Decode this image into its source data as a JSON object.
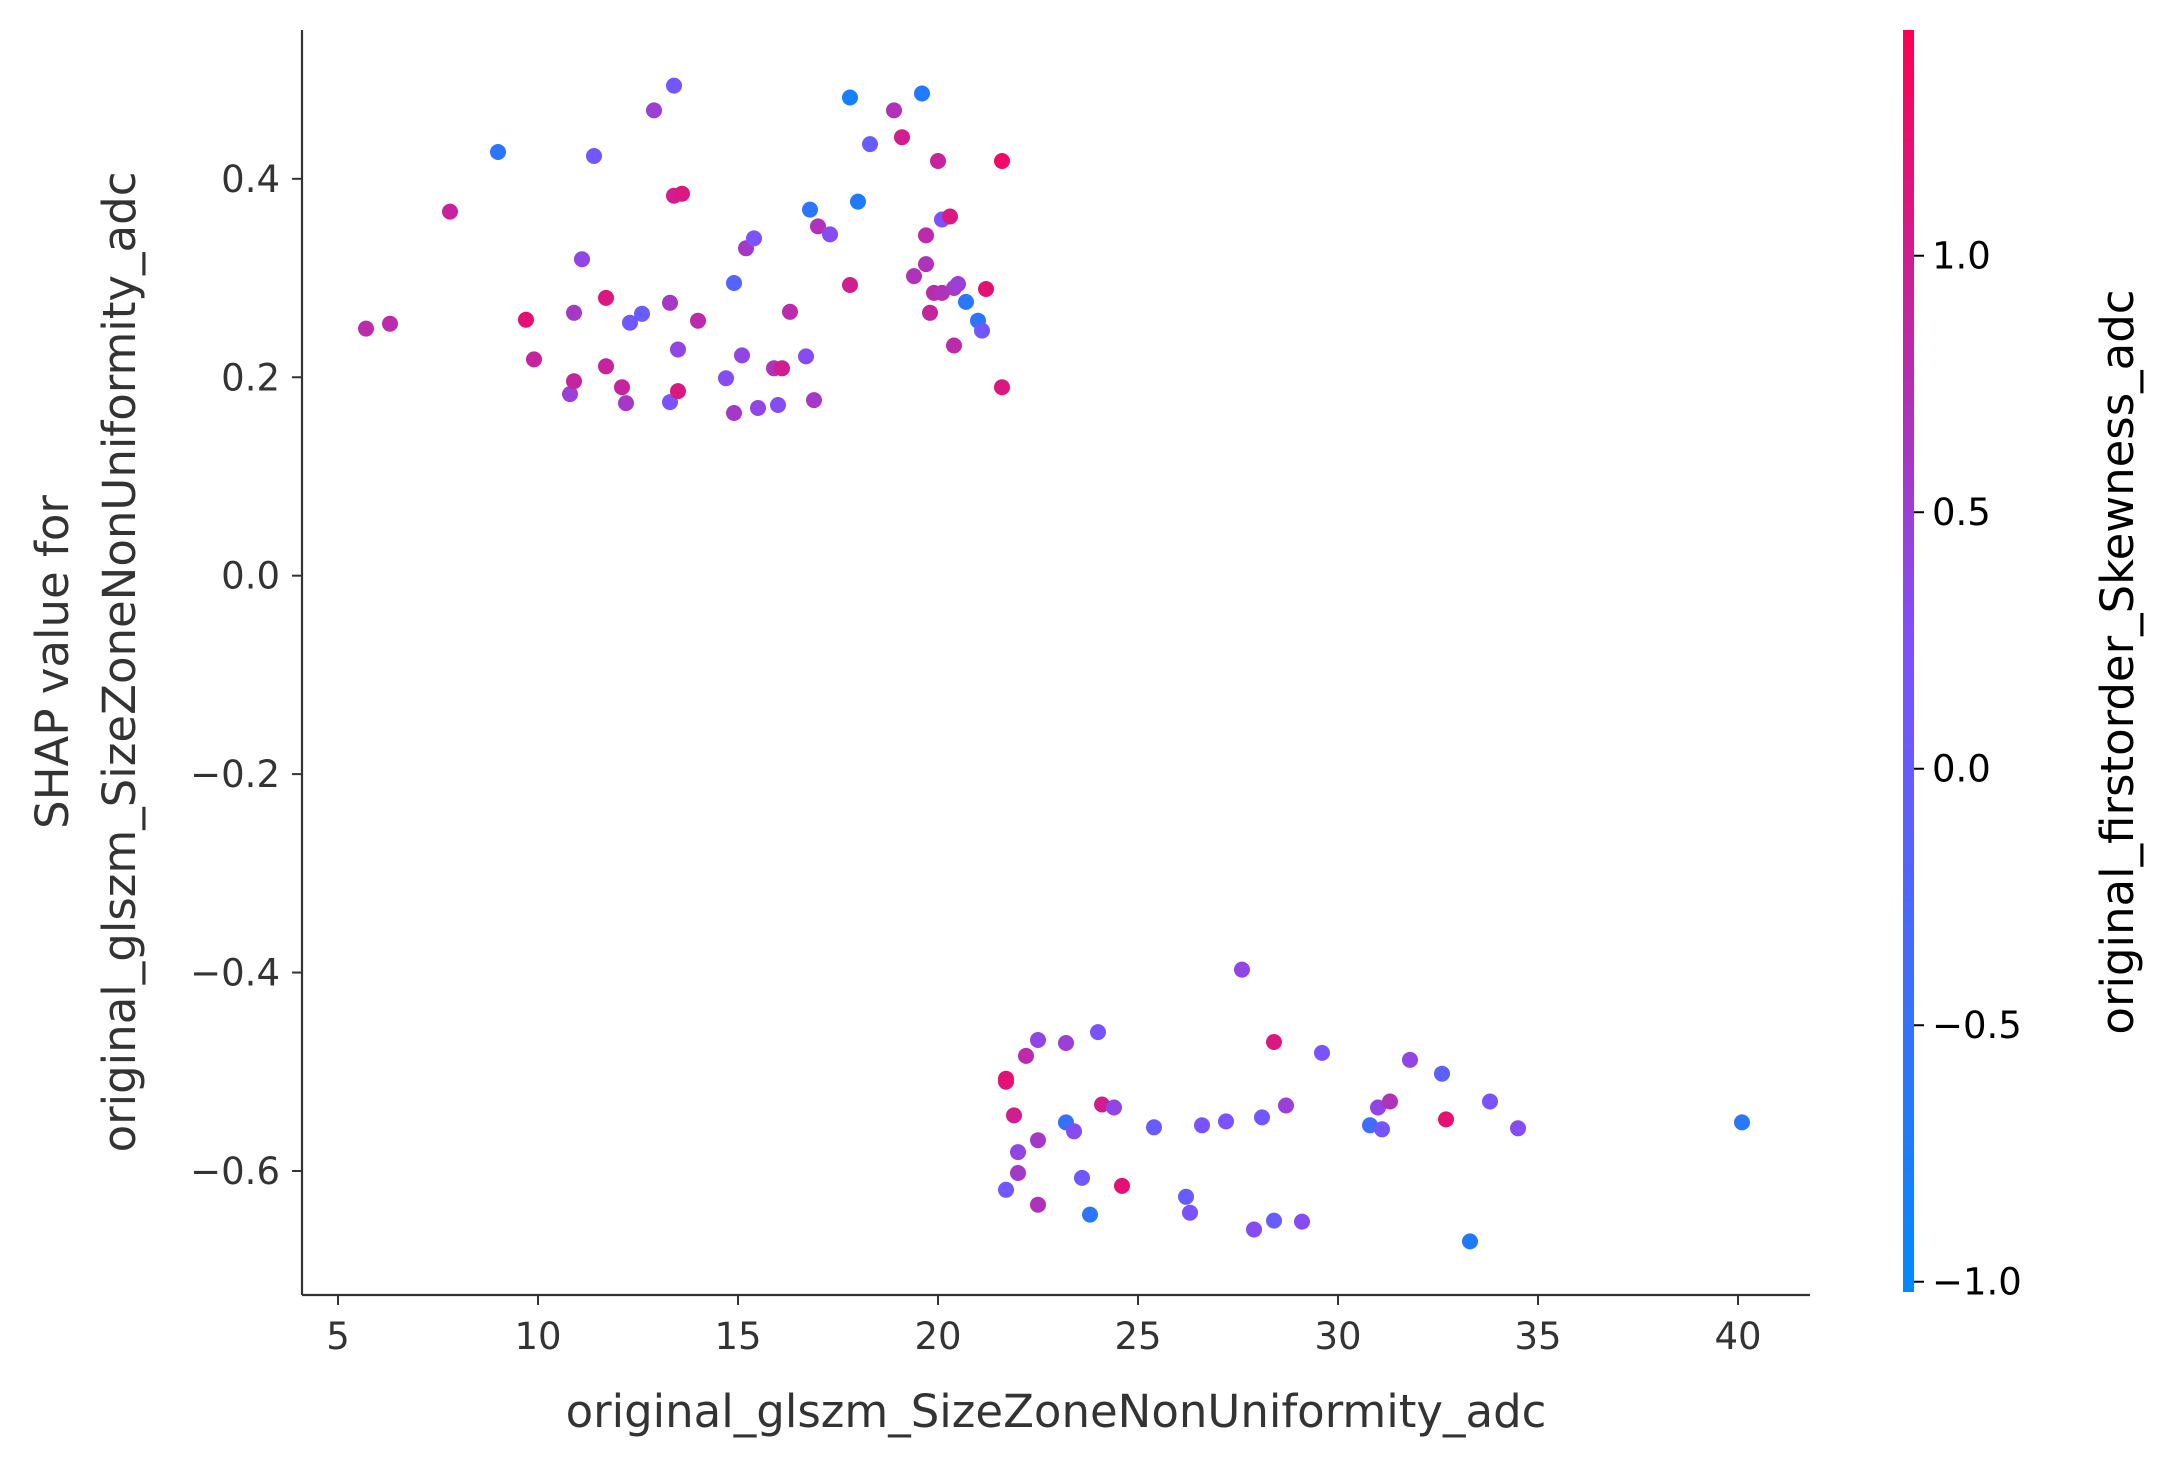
{
  "chart_data": {
    "type": "scatter",
    "title": "",
    "xlabel": "original_glszm_SizeZoneNonUniformity_adc",
    "ylabel_lines": [
      "SHAP value for",
      "original_glszm_SizeZoneNonUniformity_adc"
    ],
    "xlim": [
      4.1,
      41.8
    ],
    "ylim": [
      -0.725,
      0.55
    ],
    "x_ticks": [
      5,
      10,
      15,
      20,
      25,
      30,
      35,
      40
    ],
    "x_tick_labels": [
      "5",
      "10",
      "15",
      "20",
      "25",
      "30",
      "35",
      "40"
    ],
    "y_ticks": [
      -0.6,
      -0.4,
      -0.2,
      0.0,
      0.2,
      0.4
    ],
    "y_tick_labels": [
      "−0.6",
      "−0.4",
      "−0.2",
      "0.0",
      "0.2",
      "0.4"
    ],
    "grid": false,
    "colorbar": {
      "label": "original_firstorder_Skewness_adc",
      "range": [
        -1.02,
        1.44
      ],
      "ticks": [
        -1.0,
        -0.5,
        0.0,
        0.5,
        1.0
      ],
      "tick_labels": [
        "−1.0",
        "−0.5",
        "0.0",
        "0.5",
        "1.0"
      ],
      "low_color": "#008afb",
      "mid_color": "#7c52ff",
      "high_color": "#ff0052"
    },
    "points": [
      {
        "x": 5.7,
        "y": 0.249,
        "c": 0.8
      },
      {
        "x": 6.3,
        "y": 0.254,
        "c": 0.8
      },
      {
        "x": 7.8,
        "y": 0.367,
        "c": 0.9
      },
      {
        "x": 9.0,
        "y": 0.427,
        "c": -0.6
      },
      {
        "x": 9.7,
        "y": 0.258,
        "c": 1.2
      },
      {
        "x": 9.9,
        "y": 0.218,
        "c": 0.9
      },
      {
        "x": 10.8,
        "y": 0.183,
        "c": 0.5
      },
      {
        "x": 10.9,
        "y": 0.196,
        "c": 0.9
      },
      {
        "x": 10.9,
        "y": 0.265,
        "c": 0.6
      },
      {
        "x": 11.1,
        "y": 0.319,
        "c": 0.4
      },
      {
        "x": 11.4,
        "y": 0.423,
        "c": 0.1
      },
      {
        "x": 11.7,
        "y": 0.211,
        "c": 0.9
      },
      {
        "x": 11.7,
        "y": 0.28,
        "c": 1.1
      },
      {
        "x": 12.1,
        "y": 0.19,
        "c": 0.9
      },
      {
        "x": 12.2,
        "y": 0.174,
        "c": 0.6
      },
      {
        "x": 12.3,
        "y": 0.255,
        "c": 0.1
      },
      {
        "x": 12.6,
        "y": 0.264,
        "c": 0.0
      },
      {
        "x": 12.9,
        "y": 0.469,
        "c": 0.5
      },
      {
        "x": 13.3,
        "y": 0.175,
        "c": 0.2
      },
      {
        "x": 13.3,
        "y": 0.275,
        "c": 0.6
      },
      {
        "x": 13.4,
        "y": 0.383,
        "c": 1.0
      },
      {
        "x": 13.4,
        "y": 0.494,
        "c": 0.1
      },
      {
        "x": 13.5,
        "y": 0.186,
        "c": 1.1
      },
      {
        "x": 13.5,
        "y": 0.228,
        "c": 0.4
      },
      {
        "x": 13.6,
        "y": 0.385,
        "c": 1.1
      },
      {
        "x": 14.0,
        "y": 0.257,
        "c": 0.8
      },
      {
        "x": 14.7,
        "y": 0.199,
        "c": 0.3
      },
      {
        "x": 14.9,
        "y": 0.164,
        "c": 0.6
      },
      {
        "x": 14.9,
        "y": 0.295,
        "c": -0.2
      },
      {
        "x": 15.1,
        "y": 0.222,
        "c": 0.4
      },
      {
        "x": 15.2,
        "y": 0.33,
        "c": 0.6
      },
      {
        "x": 15.4,
        "y": 0.34,
        "c": 0.2
      },
      {
        "x": 15.5,
        "y": 0.169,
        "c": 0.4
      },
      {
        "x": 15.9,
        "y": 0.209,
        "c": 0.7
      },
      {
        "x": 16.0,
        "y": 0.172,
        "c": 0.3
      },
      {
        "x": 16.1,
        "y": 0.209,
        "c": 1.0
      },
      {
        "x": 16.3,
        "y": 0.266,
        "c": 0.8
      },
      {
        "x": 16.7,
        "y": 0.221,
        "c": 0.3
      },
      {
        "x": 16.8,
        "y": 0.369,
        "c": -0.6
      },
      {
        "x": 16.9,
        "y": 0.177,
        "c": 0.6
      },
      {
        "x": 17.0,
        "y": 0.352,
        "c": 0.7
      },
      {
        "x": 17.3,
        "y": 0.344,
        "c": 0.3
      },
      {
        "x": 17.8,
        "y": 0.482,
        "c": -0.8
      },
      {
        "x": 17.8,
        "y": 0.293,
        "c": 1.0
      },
      {
        "x": 18.0,
        "y": 0.377,
        "c": -0.7
      },
      {
        "x": 18.3,
        "y": 0.435,
        "c": 0.0
      },
      {
        "x": 18.9,
        "y": 0.469,
        "c": 0.7
      },
      {
        "x": 19.1,
        "y": 0.442,
        "c": 1.0
      },
      {
        "x": 19.4,
        "y": 0.302,
        "c": 0.7
      },
      {
        "x": 19.6,
        "y": 0.486,
        "c": -0.7
      },
      {
        "x": 19.7,
        "y": 0.343,
        "c": 0.8
      },
      {
        "x": 19.7,
        "y": 0.314,
        "c": 0.7
      },
      {
        "x": 19.8,
        "y": 0.265,
        "c": 0.9
      },
      {
        "x": 19.9,
        "y": 0.285,
        "c": 0.8
      },
      {
        "x": 20.0,
        "y": 0.418,
        "c": 0.9
      },
      {
        "x": 20.1,
        "y": 0.359,
        "c": 0.2
      },
      {
        "x": 20.1,
        "y": 0.285,
        "c": 0.7
      },
      {
        "x": 20.3,
        "y": 0.362,
        "c": 1.1
      },
      {
        "x": 20.4,
        "y": 0.29,
        "c": 0.6
      },
      {
        "x": 20.4,
        "y": 0.232,
        "c": 0.8
      },
      {
        "x": 20.5,
        "y": 0.294,
        "c": 0.5
      },
      {
        "x": 20.7,
        "y": 0.276,
        "c": -0.6
      },
      {
        "x": 21.0,
        "y": 0.257,
        "c": -0.6
      },
      {
        "x": 21.1,
        "y": 0.247,
        "c": 0.1
      },
      {
        "x": 21.2,
        "y": 0.289,
        "c": 1.2
      },
      {
        "x": 21.6,
        "y": 0.418,
        "c": 1.3
      },
      {
        "x": 21.6,
        "y": 0.19,
        "c": 1.1
      },
      {
        "x": 21.7,
        "y": -0.619,
        "c": 0.1
      },
      {
        "x": 21.7,
        "y": -0.51,
        "c": 1.1
      },
      {
        "x": 21.7,
        "y": -0.507,
        "c": 1.2
      },
      {
        "x": 21.9,
        "y": -0.544,
        "c": 1.0
      },
      {
        "x": 22.0,
        "y": -0.602,
        "c": 0.6
      },
      {
        "x": 22.0,
        "y": -0.581,
        "c": 0.4
      },
      {
        "x": 22.2,
        "y": -0.484,
        "c": 0.8
      },
      {
        "x": 22.5,
        "y": -0.468,
        "c": 0.4
      },
      {
        "x": 22.5,
        "y": -0.634,
        "c": 0.7
      },
      {
        "x": 22.5,
        "y": -0.569,
        "c": 0.6
      },
      {
        "x": 23.2,
        "y": -0.551,
        "c": -0.5
      },
      {
        "x": 23.2,
        "y": -0.471,
        "c": 0.5
      },
      {
        "x": 23.4,
        "y": -0.56,
        "c": 0.3
      },
      {
        "x": 23.6,
        "y": -0.607,
        "c": 0.1
      },
      {
        "x": 23.8,
        "y": -0.644,
        "c": -0.6
      },
      {
        "x": 24.0,
        "y": -0.46,
        "c": 0.2
      },
      {
        "x": 24.1,
        "y": -0.533,
        "c": 1.0
      },
      {
        "x": 24.4,
        "y": -0.536,
        "c": 0.4
      },
      {
        "x": 24.6,
        "y": -0.615,
        "c": 1.2
      },
      {
        "x": 25.4,
        "y": -0.556,
        "c": 0.0
      },
      {
        "x": 26.2,
        "y": -0.626,
        "c": 0.0
      },
      {
        "x": 26.3,
        "y": -0.642,
        "c": 0.2
      },
      {
        "x": 26.6,
        "y": -0.554,
        "c": 0.2
      },
      {
        "x": 27.2,
        "y": -0.55,
        "c": 0.2
      },
      {
        "x": 27.6,
        "y": -0.397,
        "c": 0.4
      },
      {
        "x": 27.9,
        "y": -0.659,
        "c": 0.3
      },
      {
        "x": 28.1,
        "y": -0.546,
        "c": 0.1
      },
      {
        "x": 28.4,
        "y": -0.65,
        "c": 0.0
      },
      {
        "x": 28.4,
        "y": -0.47,
        "c": 1.1
      },
      {
        "x": 28.7,
        "y": -0.534,
        "c": 0.5
      },
      {
        "x": 29.1,
        "y": -0.651,
        "c": 0.3
      },
      {
        "x": 29.6,
        "y": -0.481,
        "c": 0.2
      },
      {
        "x": 30.8,
        "y": -0.554,
        "c": -0.4
      },
      {
        "x": 31.0,
        "y": -0.536,
        "c": 0.4
      },
      {
        "x": 31.1,
        "y": -0.558,
        "c": 0.1
      },
      {
        "x": 31.3,
        "y": -0.53,
        "c": 0.7
      },
      {
        "x": 31.8,
        "y": -0.488,
        "c": 0.4
      },
      {
        "x": 32.6,
        "y": -0.502,
        "c": -0.1
      },
      {
        "x": 32.7,
        "y": -0.548,
        "c": 1.2
      },
      {
        "x": 33.3,
        "y": -0.671,
        "c": -0.7
      },
      {
        "x": 33.8,
        "y": -0.53,
        "c": 0.2
      },
      {
        "x": 34.5,
        "y": -0.557,
        "c": 0.3
      },
      {
        "x": 40.1,
        "y": -0.551,
        "c": -0.6
      }
    ]
  }
}
